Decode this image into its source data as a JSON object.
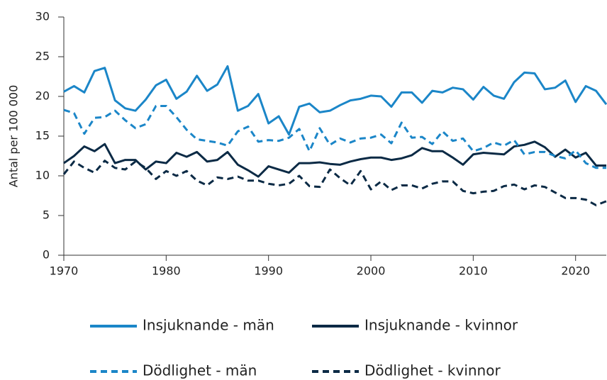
{
  "chart_data": {
    "type": "line",
    "y_label": "Antal per 100 000",
    "x": [
      1970,
      1971,
      1972,
      1973,
      1974,
      1975,
      1976,
      1977,
      1978,
      1979,
      1980,
      1981,
      1982,
      1983,
      1984,
      1985,
      1986,
      1987,
      1988,
      1989,
      1990,
      1991,
      1992,
      1993,
      1994,
      1995,
      1996,
      1997,
      1998,
      1999,
      2000,
      2001,
      2002,
      2003,
      2004,
      2005,
      2006,
      2007,
      2008,
      2009,
      2010,
      2011,
      2012,
      2013,
      2014,
      2015,
      2016,
      2017,
      2018,
      2019,
      2020,
      2021,
      2022,
      2023
    ],
    "xlim": [
      1970,
      2023
    ],
    "xticks": [
      1970,
      1980,
      1990,
      2000,
      2010,
      2020
    ],
    "ylim": [
      0,
      30
    ],
    "yticks": [
      0,
      5,
      10,
      15,
      20,
      25,
      30
    ],
    "grid": false,
    "legend": "bottom",
    "series": [
      {
        "name": "Insjuknande - män",
        "color": "#1b86c8",
        "line_style": "solid",
        "values": [
          20.6,
          21.3,
          20.5,
          23.2,
          23.6,
          19.5,
          18.5,
          18.2,
          19.6,
          21.4,
          22.1,
          19.7,
          20.6,
          22.6,
          20.7,
          21.5,
          23.8,
          18.2,
          18.8,
          20.3,
          16.6,
          17.5,
          15.2,
          18.7,
          19.1,
          18.0,
          18.2,
          18.9,
          19.5,
          19.7,
          20.1,
          20.0,
          18.7,
          20.5,
          20.5,
          19.2,
          20.7,
          20.5,
          21.1,
          20.9,
          19.6,
          21.2,
          20.1,
          19.7,
          21.8,
          23.0,
          22.9,
          20.9,
          21.1,
          22.0,
          19.3,
          21.3,
          20.7,
          19.0
        ]
      },
      {
        "name": "Insjuknande - kvinnor",
        "color": "#0b2a45",
        "line_style": "solid",
        "values": [
          11.6,
          12.5,
          13.7,
          13.1,
          14.0,
          11.6,
          12.0,
          12.0,
          10.8,
          11.8,
          11.6,
          12.9,
          12.4,
          13.0,
          11.8,
          12.0,
          13.0,
          11.4,
          10.7,
          9.9,
          11.2,
          10.8,
          10.4,
          11.6,
          11.6,
          11.7,
          11.5,
          11.4,
          11.8,
          12.1,
          12.3,
          12.3,
          12.0,
          12.2,
          12.6,
          13.5,
          13.1,
          13.1,
          12.3,
          11.4,
          12.7,
          12.9,
          12.8,
          12.7,
          13.7,
          13.9,
          14.3,
          13.6,
          12.4,
          13.3,
          12.3,
          12.9,
          11.3,
          11.3
        ]
      },
      {
        "name": "Dödlighet - män",
        "color": "#1b86c8",
        "line_style": "dashed",
        "values": [
          18.3,
          17.9,
          15.3,
          17.3,
          17.4,
          18.2,
          17.0,
          16.0,
          16.5,
          18.8,
          18.8,
          17.4,
          15.8,
          14.6,
          14.4,
          14.2,
          13.8,
          15.6,
          16.2,
          14.3,
          14.5,
          14.4,
          14.8,
          15.9,
          13.1,
          16.0,
          13.9,
          14.7,
          14.2,
          14.7,
          14.8,
          15.2,
          14.1,
          16.7,
          14.8,
          14.9,
          14.0,
          15.6,
          14.4,
          14.7,
          13.1,
          13.5,
          14.2,
          13.8,
          14.5,
          12.7,
          13.0,
          13.0,
          12.5,
          12.2,
          13.2,
          11.6,
          11.0,
          11.0
        ]
      },
      {
        "name": "Dödlighet - kvinnor",
        "color": "#0b2a45",
        "line_style": "dashed",
        "values": [
          10.2,
          11.8,
          11.0,
          10.4,
          11.9,
          11.0,
          10.8,
          11.8,
          11.0,
          9.6,
          10.6,
          10.0,
          10.6,
          9.4,
          8.8,
          9.8,
          9.6,
          9.9,
          9.4,
          9.4,
          9.0,
          8.8,
          9.0,
          10.0,
          8.7,
          8.6,
          10.8,
          9.7,
          8.8,
          10.6,
          8.3,
          9.3,
          8.2,
          8.8,
          8.8,
          8.4,
          9.0,
          9.3,
          9.3,
          8.1,
          7.8,
          8.0,
          8.1,
          8.7,
          8.9,
          8.3,
          8.8,
          8.6,
          7.9,
          7.2,
          7.2,
          7.0,
          6.3,
          6.8
        ]
      }
    ]
  }
}
